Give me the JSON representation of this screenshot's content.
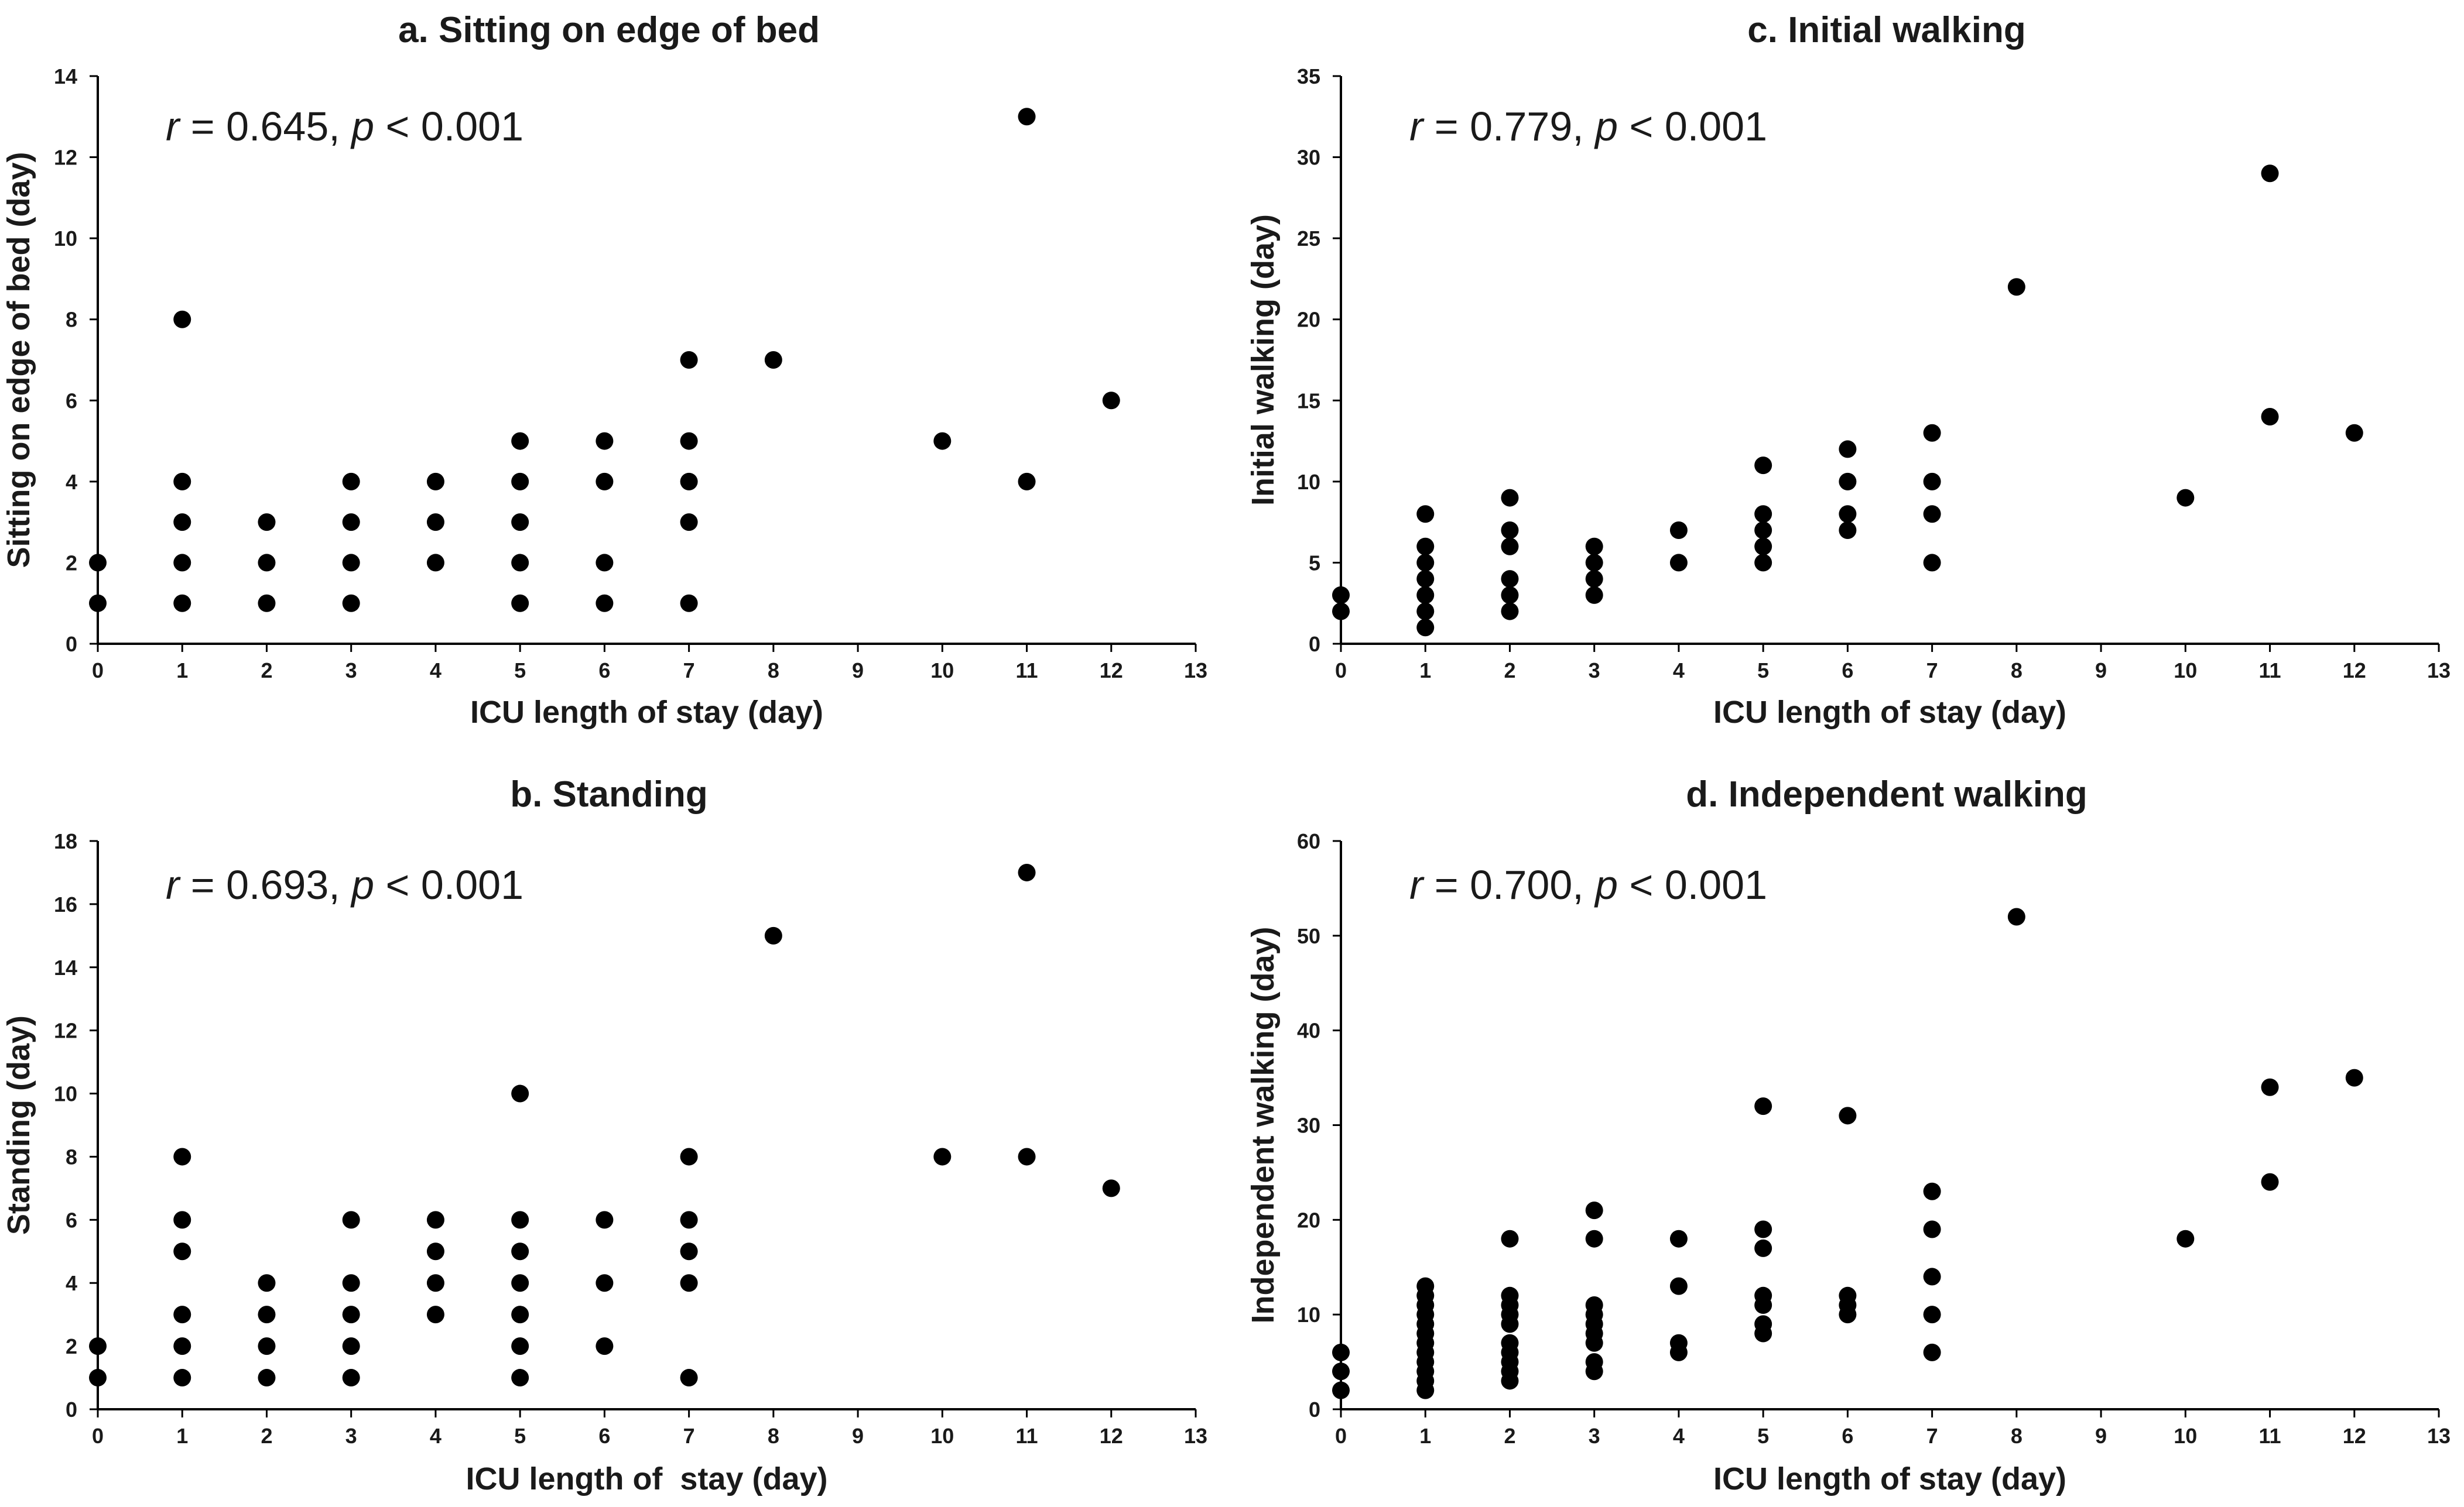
{
  "chart_data": [
    {
      "id": "a",
      "type": "scatter",
      "title": "a. Sitting on edge of bed",
      "xlabel": "ICU length of stay (day)",
      "ylabel": "Sitting on edge of bed (day)",
      "xlim": [
        0,
        13
      ],
      "ylim": [
        0,
        14
      ],
      "xticks": [
        0,
        1,
        2,
        3,
        4,
        5,
        6,
        7,
        8,
        9,
        10,
        11,
        12,
        13
      ],
      "yticks": [
        0,
        2,
        4,
        6,
        8,
        10,
        12,
        14
      ],
      "annotation": {
        "r_symbol": "r",
        "r_text": " = 0.645, ",
        "p_symbol": "p",
        "p_text": " < 0.001"
      },
      "points": [
        [
          0,
          1
        ],
        [
          0,
          2
        ],
        [
          1,
          1
        ],
        [
          1,
          2
        ],
        [
          1,
          3
        ],
        [
          1,
          4
        ],
        [
          1,
          8
        ],
        [
          2,
          1
        ],
        [
          2,
          2
        ],
        [
          2,
          3
        ],
        [
          3,
          1
        ],
        [
          3,
          2
        ],
        [
          3,
          3
        ],
        [
          3,
          4
        ],
        [
          4,
          2
        ],
        [
          4,
          3
        ],
        [
          4,
          4
        ],
        [
          5,
          1
        ],
        [
          5,
          2
        ],
        [
          5,
          3
        ],
        [
          5,
          4
        ],
        [
          5,
          5
        ],
        [
          6,
          1
        ],
        [
          6,
          2
        ],
        [
          6,
          4
        ],
        [
          6,
          5
        ],
        [
          7,
          1
        ],
        [
          7,
          3
        ],
        [
          7,
          4
        ],
        [
          7,
          5
        ],
        [
          7,
          7
        ],
        [
          8,
          7
        ],
        [
          10,
          5
        ],
        [
          11,
          4
        ],
        [
          11,
          13
        ],
        [
          12,
          6
        ]
      ],
      "grid": false
    },
    {
      "id": "b",
      "type": "scatter",
      "title": "b. Standing",
      "xlabel": "ICU length of  stay (day)",
      "ylabel": "Standing (day)",
      "xlim": [
        0,
        13
      ],
      "ylim": [
        0,
        18
      ],
      "xticks": [
        0,
        1,
        2,
        3,
        4,
        5,
        6,
        7,
        8,
        9,
        10,
        11,
        12,
        13
      ],
      "yticks": [
        0,
        2,
        4,
        6,
        8,
        10,
        12,
        14,
        16,
        18
      ],
      "annotation": {
        "r_symbol": "r",
        "r_text": " = 0.693, ",
        "p_symbol": "p",
        "p_text": " < 0.001"
      },
      "points": [
        [
          0,
          1
        ],
        [
          0,
          2
        ],
        [
          1,
          1
        ],
        [
          1,
          2
        ],
        [
          1,
          3
        ],
        [
          1,
          5
        ],
        [
          1,
          6
        ],
        [
          1,
          8
        ],
        [
          2,
          1
        ],
        [
          2,
          2
        ],
        [
          2,
          3
        ],
        [
          2,
          4
        ],
        [
          3,
          1
        ],
        [
          3,
          2
        ],
        [
          3,
          3
        ],
        [
          3,
          4
        ],
        [
          3,
          6
        ],
        [
          4,
          3
        ],
        [
          4,
          4
        ],
        [
          4,
          5
        ],
        [
          4,
          6
        ],
        [
          5,
          1
        ],
        [
          5,
          2
        ],
        [
          5,
          3
        ],
        [
          5,
          4
        ],
        [
          5,
          5
        ],
        [
          5,
          6
        ],
        [
          5,
          10
        ],
        [
          6,
          2
        ],
        [
          6,
          4
        ],
        [
          6,
          6
        ],
        [
          7,
          1
        ],
        [
          7,
          4
        ],
        [
          7,
          5
        ],
        [
          7,
          6
        ],
        [
          7,
          8
        ],
        [
          8,
          15
        ],
        [
          10,
          8
        ],
        [
          11,
          8
        ],
        [
          11,
          17
        ],
        [
          12,
          7
        ]
      ],
      "grid": false
    },
    {
      "id": "c",
      "type": "scatter",
      "title": "c. Initial walking",
      "xlabel": "ICU length of stay (day)",
      "ylabel": "Initial walking (day)",
      "xlim": [
        0,
        13
      ],
      "ylim": [
        0,
        35
      ],
      "xticks": [
        0,
        1,
        2,
        3,
        4,
        5,
        6,
        7,
        8,
        9,
        10,
        11,
        12,
        13
      ],
      "yticks": [
        0,
        5,
        10,
        15,
        20,
        25,
        30,
        35
      ],
      "annotation": {
        "r_symbol": "r",
        "r_text": " = 0.779, ",
        "p_symbol": "p",
        "p_text": " < 0.001"
      },
      "points": [
        [
          0,
          2
        ],
        [
          0,
          3
        ],
        [
          1,
          1
        ],
        [
          1,
          2
        ],
        [
          1,
          3
        ],
        [
          1,
          4
        ],
        [
          1,
          5
        ],
        [
          1,
          6
        ],
        [
          1,
          8
        ],
        [
          2,
          2
        ],
        [
          2,
          3
        ],
        [
          2,
          4
        ],
        [
          2,
          6
        ],
        [
          2,
          7
        ],
        [
          2,
          9
        ],
        [
          3,
          3
        ],
        [
          3,
          4
        ],
        [
          3,
          5
        ],
        [
          3,
          6
        ],
        [
          4,
          5
        ],
        [
          4,
          7
        ],
        [
          5,
          5
        ],
        [
          5,
          6
        ],
        [
          5,
          7
        ],
        [
          5,
          8
        ],
        [
          5,
          11
        ],
        [
          6,
          7
        ],
        [
          6,
          8
        ],
        [
          6,
          10
        ],
        [
          6,
          12
        ],
        [
          7,
          5
        ],
        [
          7,
          8
        ],
        [
          7,
          10
        ],
        [
          7,
          13
        ],
        [
          8,
          22
        ],
        [
          10,
          9
        ],
        [
          11,
          14
        ],
        [
          11,
          29
        ],
        [
          12,
          13
        ]
      ],
      "grid": false
    },
    {
      "id": "d",
      "type": "scatter",
      "title": "d. Independent walking",
      "xlabel": "ICU length of stay (day)",
      "ylabel": "Independent walking (day)",
      "xlim": [
        0,
        13
      ],
      "ylim": [
        0,
        60
      ],
      "xticks": [
        0,
        1,
        2,
        3,
        4,
        5,
        6,
        7,
        8,
        9,
        10,
        11,
        12,
        13
      ],
      "yticks": [
        0,
        10,
        20,
        30,
        40,
        50,
        60
      ],
      "annotation": {
        "r_symbol": "r",
        "r_text": " = 0.700, ",
        "p_symbol": "p",
        "p_text": " < 0.001"
      },
      "points": [
        [
          0,
          2
        ],
        [
          0,
          4
        ],
        [
          0,
          6
        ],
        [
          1,
          2
        ],
        [
          1,
          3
        ],
        [
          1,
          4
        ],
        [
          1,
          5
        ],
        [
          1,
          6
        ],
        [
          1,
          7
        ],
        [
          1,
          8
        ],
        [
          1,
          9
        ],
        [
          1,
          10
        ],
        [
          1,
          11
        ],
        [
          1,
          12
        ],
        [
          1,
          13
        ],
        [
          2,
          3
        ],
        [
          2,
          4
        ],
        [
          2,
          5
        ],
        [
          2,
          6
        ],
        [
          2,
          7
        ],
        [
          2,
          9
        ],
        [
          2,
          10
        ],
        [
          2,
          11
        ],
        [
          2,
          12
        ],
        [
          2,
          18
        ],
        [
          3,
          4
        ],
        [
          3,
          5
        ],
        [
          3,
          7
        ],
        [
          3,
          8
        ],
        [
          3,
          9
        ],
        [
          3,
          10
        ],
        [
          3,
          11
        ],
        [
          3,
          18
        ],
        [
          3,
          21
        ],
        [
          4,
          6
        ],
        [
          4,
          7
        ],
        [
          4,
          13
        ],
        [
          4,
          18
        ],
        [
          5,
          8
        ],
        [
          5,
          9
        ],
        [
          5,
          11
        ],
        [
          5,
          12
        ],
        [
          5,
          17
        ],
        [
          5,
          19
        ],
        [
          5,
          32
        ],
        [
          6,
          10
        ],
        [
          6,
          11
        ],
        [
          6,
          12
        ],
        [
          6,
          31
        ],
        [
          7,
          6
        ],
        [
          7,
          10
        ],
        [
          7,
          14
        ],
        [
          7,
          19
        ],
        [
          7,
          23
        ],
        [
          8,
          52
        ],
        [
          10,
          18
        ],
        [
          11,
          24
        ],
        [
          11,
          34
        ],
        [
          12,
          35
        ]
      ],
      "grid": false
    }
  ]
}
